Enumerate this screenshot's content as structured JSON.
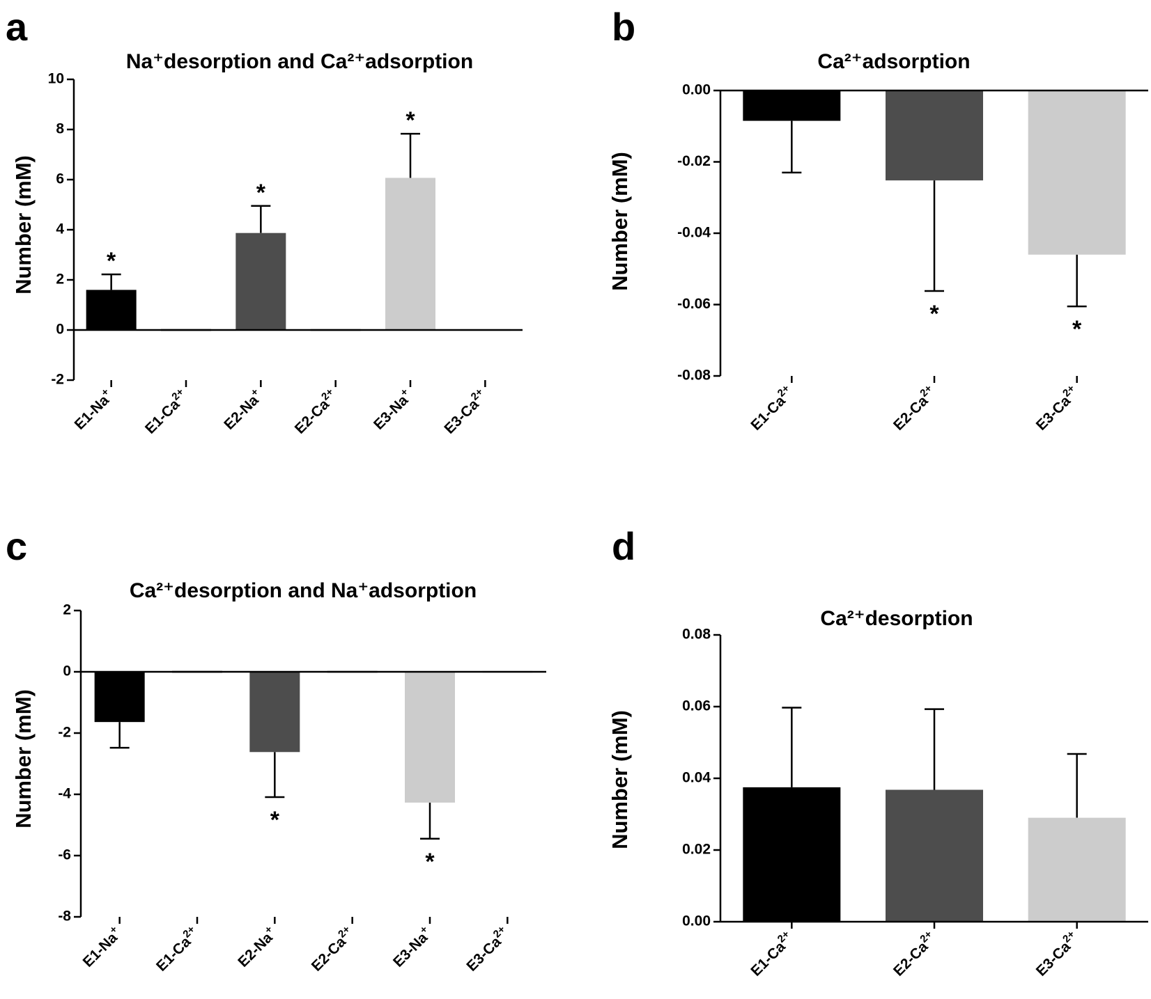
{
  "panels": [
    {
      "letter": "a",
      "title": "Na⁺desorption and Ca²⁺adsorption",
      "ylabel": "Number (mM)",
      "tick_labels": [
        "-2",
        "0",
        "2",
        "4",
        "6",
        "8",
        "10"
      ]
    },
    {
      "letter": "b",
      "title": "Ca²⁺adsorption",
      "ylabel": "Number (mM)",
      "tick_labels": [
        "-0.08",
        "-0.06",
        "-0.04",
        "-0.02",
        "0.00"
      ]
    },
    {
      "letter": "c",
      "title": "Ca²⁺desorption and Na⁺adsorption",
      "ylabel": "Number (mM)",
      "tick_labels": [
        "-8",
        "-6",
        "-4",
        "-2",
        "0",
        "2"
      ]
    },
    {
      "letter": "d",
      "title": "Ca²⁺desorption",
      "ylabel": "Number (mM)",
      "tick_labels": [
        "0.00",
        "0.02",
        "0.04",
        "0.06",
        "0.08"
      ]
    }
  ],
  "chart_data": [
    {
      "type": "bar",
      "title": "Na⁺desorption and Ca²⁺adsorption",
      "ylabel": "Number (mM)",
      "ylim": [
        -2,
        10
      ],
      "yticks": [
        -2,
        0,
        2,
        4,
        6,
        8,
        10
      ],
      "categories": [
        {
          "base": "E1-Na",
          "sup": "+"
        },
        {
          "base": "E1-Ca",
          "sup": "2+"
        },
        {
          "base": "E2-Na",
          "sup": "+"
        },
        {
          "base": "E2-Ca",
          "sup": "2+"
        },
        {
          "base": "E3-Na",
          "sup": "+"
        },
        {
          "base": "E3-Ca",
          "sup": "2+"
        }
      ],
      "values": [
        1.6,
        -0.02,
        3.87,
        -0.03,
        6.07,
        -0.04
      ],
      "errors": [
        0.62,
        0,
        1.08,
        0,
        1.76,
        0
      ],
      "colors": [
        "#000000",
        "#000000",
        "#4d4d4d",
        "#4d4d4d",
        "#cccccc",
        "#cccccc"
      ],
      "significance": [
        "*",
        "",
        "*",
        "",
        "*",
        ""
      ]
    },
    {
      "type": "bar",
      "title": "Ca²⁺adsorption",
      "ylabel": "Number (mM)",
      "ylim": [
        -0.08,
        0
      ],
      "yticks": [
        -0.08,
        -0.06,
        -0.04,
        -0.02,
        0
      ],
      "categories": [
        {
          "base": "E1-Ca",
          "sup": "2+"
        },
        {
          "base": "E2-Ca",
          "sup": "2+"
        },
        {
          "base": "E3-Ca",
          "sup": "2+"
        }
      ],
      "values": [
        -0.0085,
        -0.0252,
        -0.046
      ],
      "errors": [
        0.0145,
        0.031,
        0.0145
      ],
      "colors": [
        "#000000",
        "#4d4d4d",
        "#cccccc"
      ],
      "significance": [
        "",
        "*",
        "*"
      ]
    },
    {
      "type": "bar",
      "title": "Ca²⁺desorption and Na⁺adsorption",
      "ylabel": "Number (mM)",
      "ylim": [
        -8,
        2
      ],
      "yticks": [
        -8,
        -6,
        -4,
        -2,
        0,
        2
      ],
      "categories": [
        {
          "base": "E1-Na",
          "sup": "+"
        },
        {
          "base": "E1-Ca",
          "sup": "2+"
        },
        {
          "base": "E2-Na",
          "sup": "+"
        },
        {
          "base": "E2-Ca",
          "sup": "2+"
        },
        {
          "base": "E3-Na",
          "sup": "+"
        },
        {
          "base": "E3-Ca",
          "sup": "2+"
        }
      ],
      "values": [
        -1.64,
        0.04,
        -2.62,
        0.04,
        -4.27,
        0.03
      ],
      "errors": [
        0.84,
        0,
        1.47,
        0,
        1.18,
        0
      ],
      "colors": [
        "#000000",
        "#000000",
        "#4d4d4d",
        "#4d4d4d",
        "#cccccc",
        "#cccccc"
      ],
      "significance": [
        "",
        "",
        "*",
        "",
        "*",
        ""
      ]
    },
    {
      "type": "bar",
      "title": "Ca²⁺desorption",
      "ylabel": "Number (mM)",
      "ylim": [
        0,
        0.08
      ],
      "yticks": [
        0,
        0.02,
        0.04,
        0.06,
        0.08
      ],
      "categories": [
        {
          "base": "E1-Ca",
          "sup": "2+"
        },
        {
          "base": "E2-Ca",
          "sup": "2+"
        },
        {
          "base": "E3-Ca",
          "sup": "2+"
        }
      ],
      "values": [
        0.0375,
        0.0368,
        0.029
      ],
      "errors": [
        0.0222,
        0.0225,
        0.0178
      ],
      "colors": [
        "#000000",
        "#4d4d4d",
        "#cccccc"
      ],
      "significance": [
        "",
        "",
        ""
      ]
    }
  ]
}
